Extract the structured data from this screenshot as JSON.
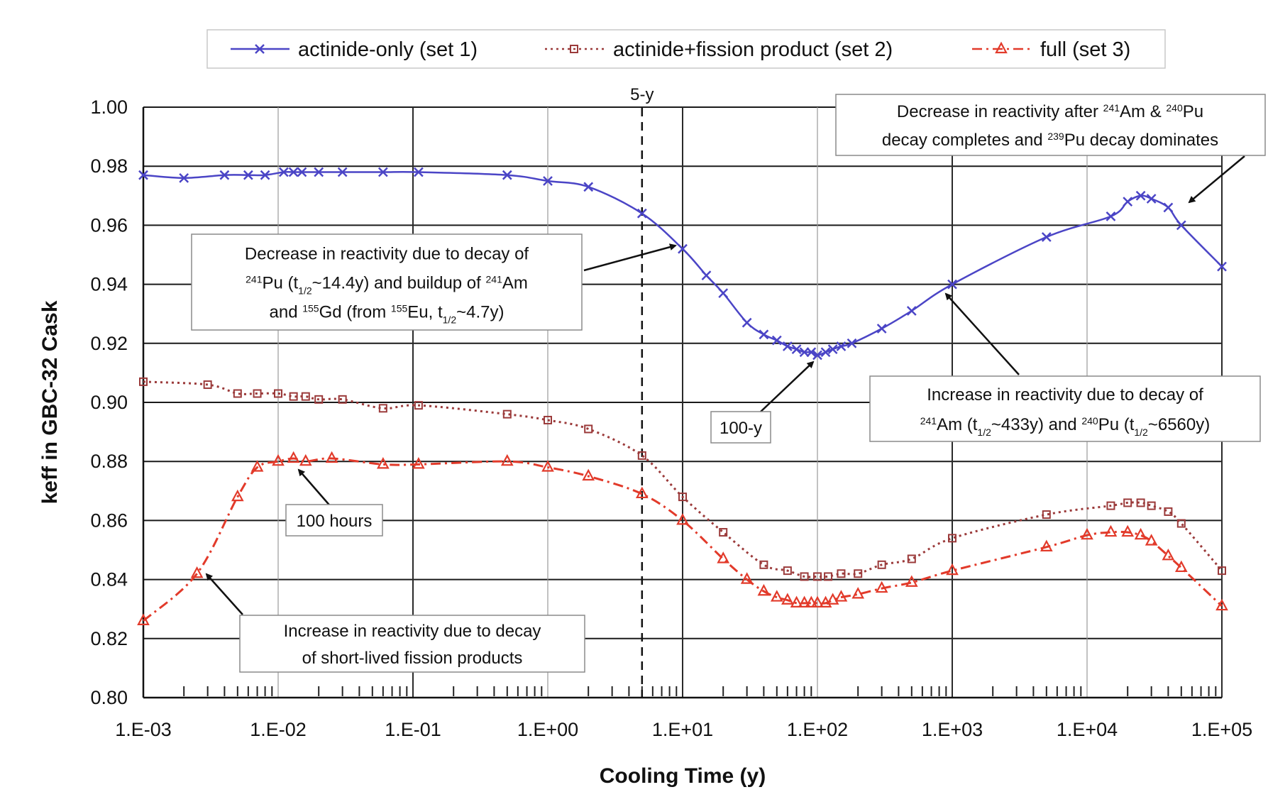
{
  "chart_data": {
    "type": "line",
    "title": "",
    "xlabel": "Cooling Time (y)",
    "ylabel": "keff in GBC-32 Cask",
    "x_scale": "log",
    "xlim": [
      0.001,
      100000
    ],
    "ylim": [
      0.8,
      1.0
    ],
    "x_tick_labels": [
      "1.E-03",
      "1.E-02",
      "1.E-01",
      "1.E+00",
      "1.E+01",
      "1.E+02",
      "1.E+03",
      "1.E+04",
      "1.E+05"
    ],
    "x_tick_values": [
      0.001,
      0.01,
      0.1,
      1,
      10,
      100,
      1000,
      10000,
      100000
    ],
    "y_tick_labels": [
      "0.80",
      "0.82",
      "0.84",
      "0.86",
      "0.88",
      "0.90",
      "0.92",
      "0.94",
      "0.96",
      "0.98",
      "1.00"
    ],
    "y_tick_values": [
      0.8,
      0.82,
      0.84,
      0.86,
      0.88,
      0.9,
      0.92,
      0.94,
      0.96,
      0.98,
      1.0
    ],
    "grid": true,
    "legend_position": "top",
    "series": [
      {
        "name": "actinide-only (set 1)",
        "color": "#4b45c6",
        "marker": "x",
        "line_style": "solid",
        "x": [
          0.001,
          0.002,
          0.004,
          0.006,
          0.008,
          0.011,
          0.013,
          0.015,
          0.02,
          0.03,
          0.06,
          0.11,
          0.5,
          1.0,
          2.0,
          5.0,
          10,
          15,
          20,
          30,
          40,
          50,
          60,
          70,
          80,
          90,
          100,
          115,
          130,
          150,
          180,
          300,
          500,
          1000,
          5000,
          15000,
          20000,
          25000,
          30000,
          40000,
          50000,
          100000
        ],
        "y": [
          0.977,
          0.976,
          0.977,
          0.977,
          0.977,
          0.978,
          0.978,
          0.978,
          0.978,
          0.978,
          0.978,
          0.978,
          0.977,
          0.975,
          0.973,
          0.964,
          0.952,
          0.943,
          0.937,
          0.927,
          0.923,
          0.921,
          0.919,
          0.918,
          0.917,
          0.917,
          0.916,
          0.917,
          0.918,
          0.919,
          0.92,
          0.925,
          0.931,
          0.94,
          0.956,
          0.963,
          0.968,
          0.97,
          0.969,
          0.966,
          0.96,
          0.946
        ]
      },
      {
        "name": "actinide+fission product (set 2)",
        "color": "#9b3a3a",
        "marker": "square",
        "line_style": "dotted",
        "x": [
          0.001,
          0.003,
          0.005,
          0.007,
          0.01,
          0.013,
          0.016,
          0.02,
          0.03,
          0.06,
          0.11,
          0.5,
          1.0,
          2.0,
          5.0,
          10,
          20,
          40,
          60,
          80,
          100,
          120,
          150,
          200,
          300,
          500,
          1000,
          5000,
          15000,
          20000,
          25000,
          30000,
          40000,
          50000,
          100000
        ],
        "y": [
          0.907,
          0.906,
          0.903,
          0.903,
          0.903,
          0.902,
          0.902,
          0.901,
          0.901,
          0.898,
          0.899,
          0.896,
          0.894,
          0.891,
          0.882,
          0.868,
          0.856,
          0.845,
          0.843,
          0.841,
          0.841,
          0.841,
          0.842,
          0.842,
          0.845,
          0.847,
          0.854,
          0.862,
          0.865,
          0.866,
          0.866,
          0.865,
          0.863,
          0.859,
          0.843
        ]
      },
      {
        "name": "full (set 3)",
        "color": "#e23a2a",
        "marker": "triangle",
        "line_style": "dashdot",
        "x": [
          0.001,
          0.0025,
          0.005,
          0.007,
          0.01,
          0.013,
          0.016,
          0.025,
          0.06,
          0.11,
          0.5,
          1.0,
          2.0,
          5.0,
          10,
          20,
          30,
          40,
          50,
          60,
          70,
          80,
          90,
          100,
          115,
          130,
          150,
          200,
          300,
          500,
          1000,
          5000,
          10000,
          15000,
          20000,
          25000,
          30000,
          40000,
          50000,
          100000
        ],
        "y": [
          0.826,
          0.842,
          0.868,
          0.878,
          0.88,
          0.881,
          0.88,
          0.881,
          0.879,
          0.879,
          0.88,
          0.878,
          0.875,
          0.869,
          0.86,
          0.847,
          0.84,
          0.836,
          0.834,
          0.833,
          0.832,
          0.832,
          0.832,
          0.832,
          0.832,
          0.833,
          0.834,
          0.835,
          0.837,
          0.839,
          0.843,
          0.851,
          0.855,
          0.856,
          0.856,
          0.855,
          0.853,
          0.848,
          0.844,
          0.831
        ]
      }
    ],
    "reference_line": {
      "x": 5,
      "label": "5-y"
    },
    "annotations": [
      {
        "id": "a5y",
        "lines": [
          [
            {
              "t": "Decrease in reactivity due to decay of"
            }
          ],
          [
            {
              "t": "241",
              "sup": true
            },
            {
              "t": "Pu (t"
            },
            {
              "t": "1/2",
              "sub": true
            },
            {
              "t": "~14.4y) and buildup of "
            },
            {
              "t": "241",
              "sup": true
            },
            {
              "t": "Am"
            }
          ],
          [
            {
              "t": "and "
            },
            {
              "t": "155",
              "sup": true
            },
            {
              "t": "Gd (from "
            },
            {
              "t": "155",
              "sup": true
            },
            {
              "t": "Eu, t"
            },
            {
              "t": "1/2",
              "sub": true
            },
            {
              "t": "~4.7y)"
            }
          ]
        ]
      },
      {
        "id": "a100y",
        "lines": [
          [
            {
              "t": "100-y"
            }
          ]
        ]
      },
      {
        "id": "adecay",
        "lines": [
          [
            {
              "t": "Decrease in reactivity after "
            },
            {
              "t": "241",
              "sup": true
            },
            {
              "t": "Am & "
            },
            {
              "t": "240",
              "sup": true
            },
            {
              "t": "Pu"
            }
          ],
          [
            {
              "t": "decay completes and "
            },
            {
              "t": "239",
              "sup": true
            },
            {
              "t": "Pu decay dominates"
            }
          ]
        ]
      },
      {
        "id": "aincrease",
        "lines": [
          [
            {
              "t": "Increase in reactivity due to decay of"
            }
          ],
          [
            {
              "t": "241",
              "sup": true
            },
            {
              "t": "Am (t"
            },
            {
              "t": "1/2",
              "sub": true
            },
            {
              "t": "~433y) and "
            },
            {
              "t": "240",
              "sup": true
            },
            {
              "t": "Pu (t"
            },
            {
              "t": "1/2",
              "sub": true
            },
            {
              "t": "~6560y)"
            }
          ]
        ]
      },
      {
        "id": "a100h",
        "lines": [
          [
            {
              "t": "100 hours"
            }
          ]
        ]
      },
      {
        "id": "ashort",
        "lines": [
          [
            {
              "t": "Increase in reactivity due to decay"
            }
          ],
          [
            {
              "t": "of short-lived fission products"
            }
          ]
        ]
      }
    ]
  }
}
